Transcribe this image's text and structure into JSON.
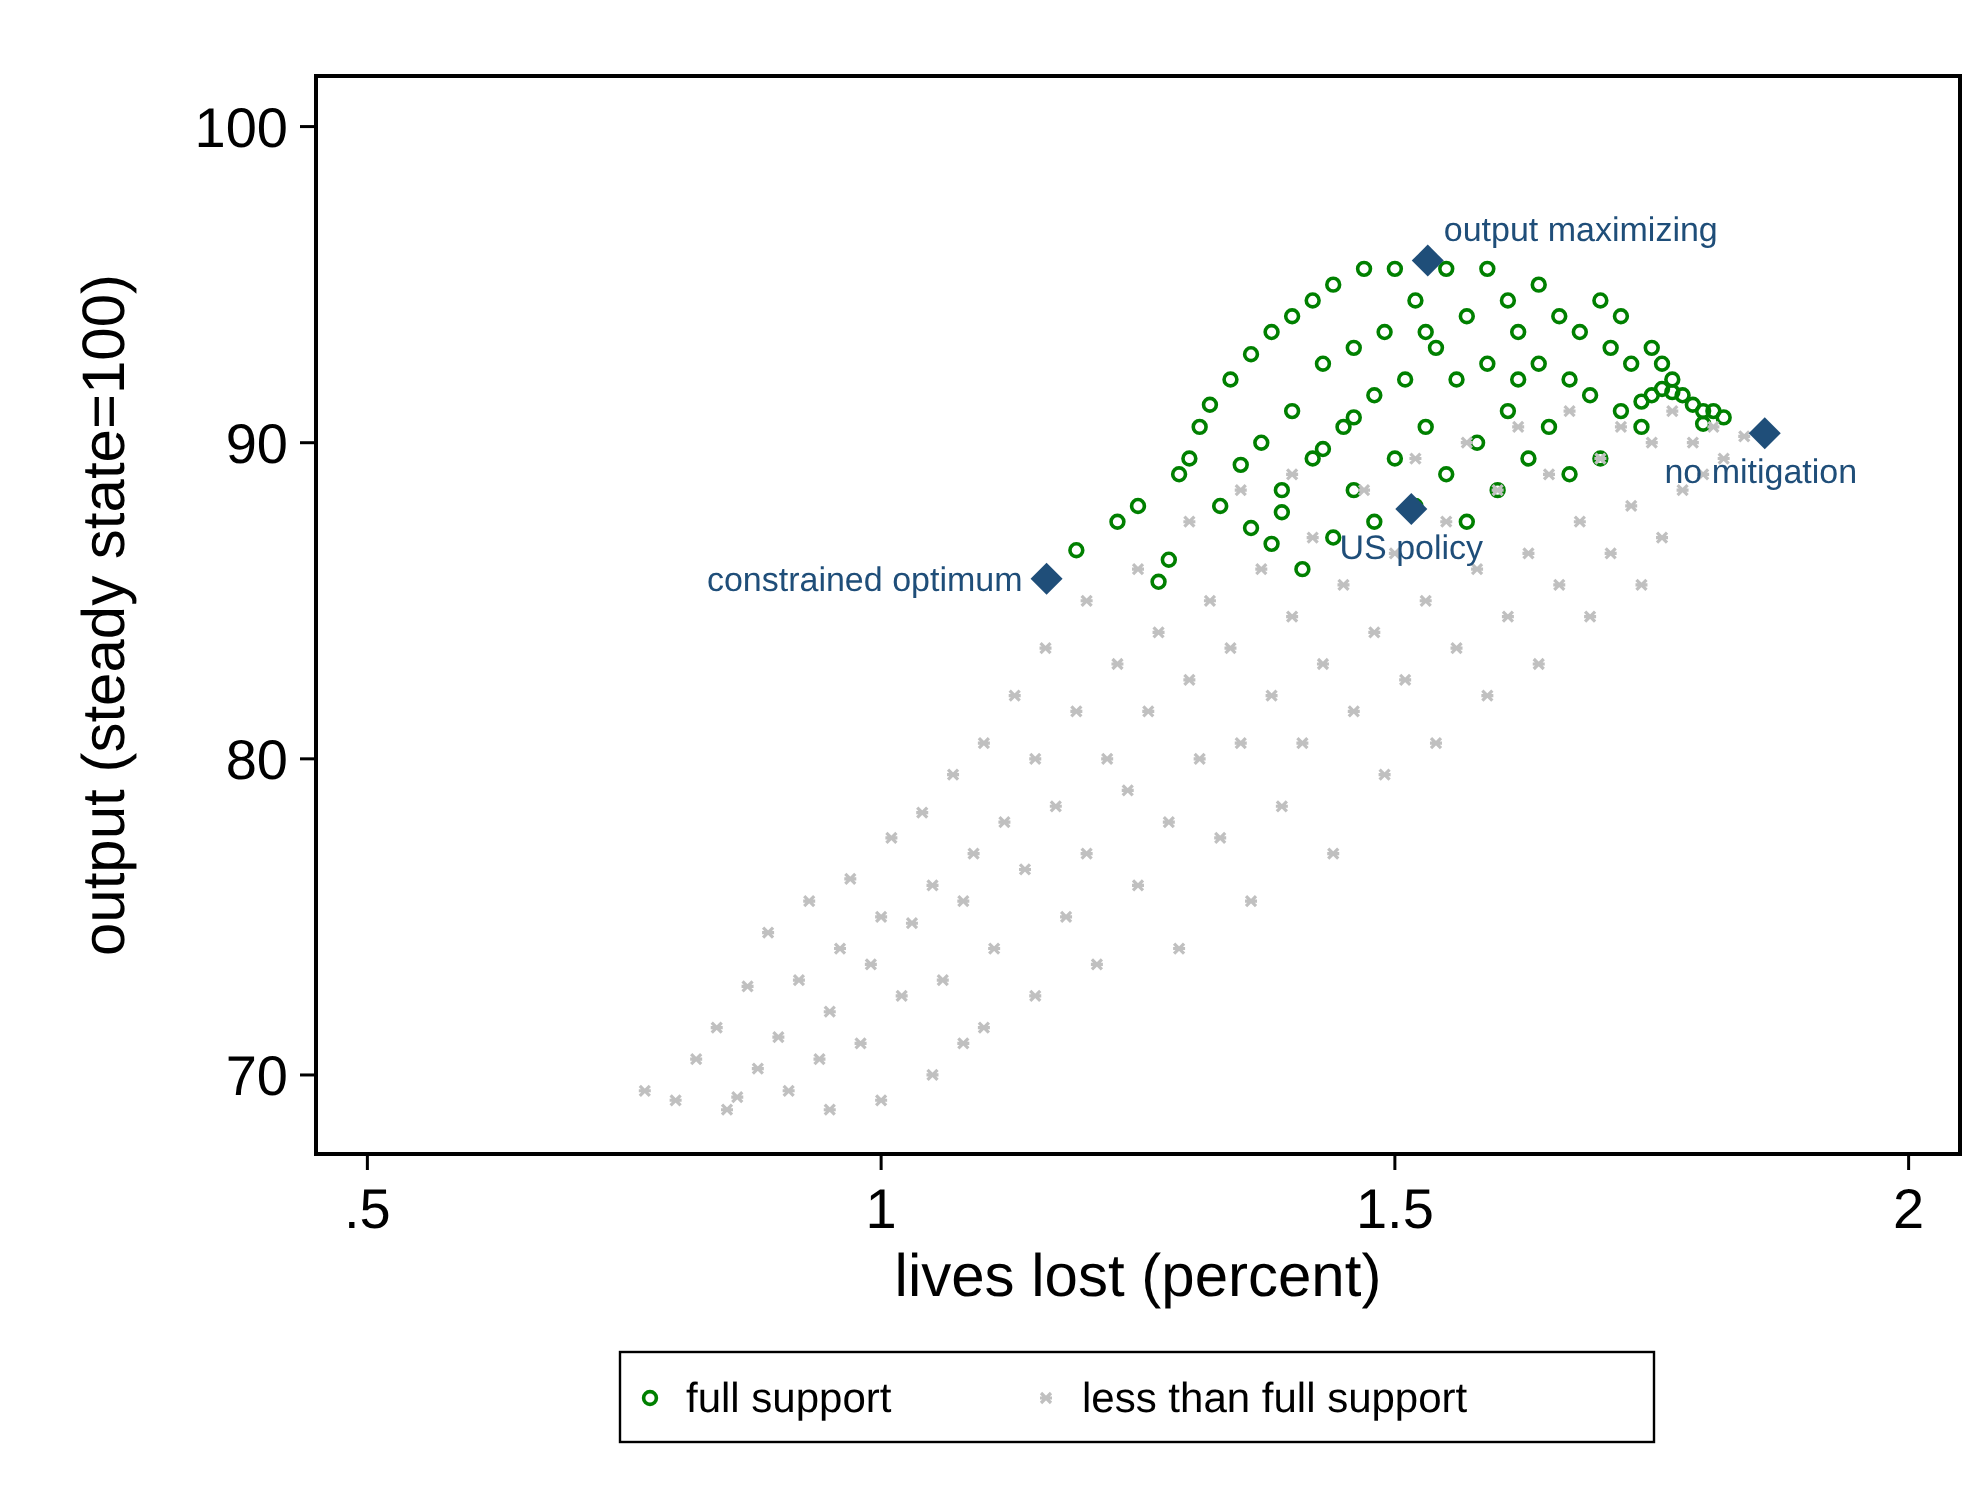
{
  "chart_data": {
    "type": "scatter",
    "xlabel": "lives lost (percent)",
    "ylabel": "output (steady state=100)",
    "xlim": [
      0.45,
      2.05
    ],
    "ylim": [
      67.5,
      101.6
    ],
    "xticks": [
      {
        "value": 0.5,
        "label": ".5"
      },
      1,
      1.5,
      2
    ],
    "yticks": [
      70,
      80,
      90,
      100
    ],
    "grid": false,
    "legend": "bottom",
    "series": [
      {
        "name": "full support",
        "color": "#008000",
        "marker": "circle",
        "x": [
          1.19,
          1.23,
          1.25,
          1.27,
          1.28,
          1.29,
          1.3,
          1.31,
          1.32,
          1.33,
          1.34,
          1.35,
          1.36,
          1.37,
          1.38,
          1.38,
          1.39,
          1.4,
          1.4,
          1.41,
          1.42,
          1.42,
          1.43,
          1.44,
          1.44,
          1.45,
          1.46,
          1.46,
          1.47,
          1.48,
          1.48,
          1.49,
          1.5,
          1.5,
          1.51,
          1.52,
          1.52,
          1.53,
          1.54,
          1.55,
          1.55,
          1.56,
          1.57,
          1.57,
          1.58,
          1.59,
          1.59,
          1.6,
          1.61,
          1.61,
          1.62,
          1.63,
          1.64,
          1.64,
          1.65,
          1.66,
          1.67,
          1.67,
          1.68,
          1.69,
          1.7,
          1.7,
          1.71,
          1.72,
          1.72,
          1.73,
          1.74,
          1.74,
          1.75,
          1.75,
          1.76,
          1.76,
          1.77,
          1.77,
          1.78,
          1.79,
          1.8,
          1.8,
          1.81,
          1.82,
          1.62,
          1.53,
          1.46,
          1.43,
          1.39,
          1.36
        ],
        "values": [
          86.6,
          87.5,
          88.0,
          85.6,
          86.3,
          89.0,
          89.5,
          90.5,
          91.2,
          88.0,
          92.0,
          89.3,
          92.8,
          90.0,
          93.5,
          86.8,
          88.5,
          94.0,
          91.0,
          86.0,
          94.5,
          89.5,
          92.5,
          87.0,
          95.0,
          90.5,
          93.0,
          88.5,
          95.5,
          91.5,
          87.5,
          93.5,
          95.5,
          89.5,
          92.0,
          94.5,
          88.0,
          90.5,
          93.0,
          95.5,
          89.0,
          92.0,
          94.0,
          87.5,
          90.0,
          95.5,
          92.5,
          88.5,
          94.5,
          91.0,
          93.5,
          89.5,
          95.0,
          92.5,
          90.5,
          94.0,
          92.0,
          89.0,
          93.5,
          91.5,
          94.5,
          89.5,
          93.0,
          91.0,
          94.0,
          92.5,
          90.5,
          91.3,
          93.0,
          91.5,
          92.5,
          91.7,
          91.6,
          92.0,
          91.5,
          91.2,
          90.6,
          91.0,
          91.0,
          90.8,
          92.0,
          93.5,
          90.8,
          89.8,
          87.8,
          87.3
        ]
      },
      {
        "name": "less than full support",
        "color": "#c0c0c0",
        "marker": "cross",
        "x": [
          0.77,
          0.8,
          0.82,
          0.84,
          0.86,
          0.87,
          0.88,
          0.89,
          0.9,
          0.91,
          0.92,
          0.93,
          0.94,
          0.95,
          0.96,
          0.97,
          0.98,
          0.99,
          1.0,
          1.0,
          1.01,
          1.02,
          1.03,
          1.04,
          1.05,
          1.05,
          1.06,
          1.07,
          1.08,
          1.09,
          1.1,
          1.1,
          1.11,
          1.12,
          1.13,
          1.14,
          1.15,
          1.15,
          1.16,
          1.17,
          1.18,
          1.19,
          1.2,
          1.2,
          1.21,
          1.22,
          1.23,
          1.24,
          1.25,
          1.25,
          1.26,
          1.27,
          1.28,
          1.29,
          1.3,
          1.3,
          1.31,
          1.32,
          1.33,
          1.34,
          1.35,
          1.35,
          1.36,
          1.37,
          1.38,
          1.39,
          1.4,
          1.4,
          1.41,
          1.42,
          1.43,
          1.44,
          1.45,
          1.46,
          1.47,
          1.48,
          1.49,
          1.5,
          1.51,
          1.52,
          1.53,
          1.54,
          1.55,
          1.56,
          1.57,
          1.58,
          1.59,
          1.6,
          1.61,
          1.62,
          1.63,
          1.64,
          1.65,
          1.66,
          1.67,
          1.68,
          1.69,
          1.7,
          1.71,
          1.72,
          1.73,
          1.74,
          1.75,
          1.76,
          1.77,
          1.78,
          1.79,
          1.8,
          1.81,
          1.82,
          1.84,
          0.85,
          0.95,
          1.08
        ],
        "values": [
          69.5,
          69.2,
          70.5,
          71.5,
          69.3,
          72.8,
          70.2,
          74.5,
          71.2,
          69.5,
          73.0,
          75.5,
          70.5,
          72.0,
          74.0,
          76.2,
          71.0,
          73.5,
          69.2,
          75.0,
          77.5,
          72.5,
          74.8,
          78.3,
          70.0,
          76.0,
          73.0,
          79.5,
          75.5,
          77.0,
          71.5,
          80.5,
          74.0,
          78.0,
          82.0,
          76.5,
          72.5,
          80.0,
          83.5,
          78.5,
          75.0,
          81.5,
          85.0,
          77.0,
          73.5,
          80.0,
          83.0,
          79.0,
          76.0,
          86.0,
          81.5,
          84.0,
          78.0,
          74.0,
          82.5,
          87.5,
          80.0,
          85.0,
          77.5,
          83.5,
          88.5,
          80.5,
          75.5,
          86.0,
          82.0,
          78.5,
          84.5,
          89.0,
          80.5,
          87.0,
          83.0,
          77.0,
          85.5,
          81.5,
          88.5,
          84.0,
          79.5,
          86.5,
          82.5,
          89.5,
          85.0,
          80.5,
          87.5,
          83.5,
          90.0,
          86.0,
          82.0,
          88.5,
          84.5,
          90.5,
          86.5,
          83.0,
          89.0,
          85.5,
          91.0,
          87.5,
          84.5,
          89.5,
          86.5,
          90.5,
          88.0,
          85.5,
          90.0,
          87.0,
          91.0,
          88.5,
          90.0,
          89.0,
          90.5,
          89.5,
          90.2,
          68.9,
          68.9,
          71.0
        ]
      },
      {
        "color": "#1f4e79",
        "marker": "diamond",
        "x": [
          1.161,
          1.532,
          1.516,
          1.86
        ],
        "values": [
          85.7,
          95.76,
          87.9,
          90.3
        ]
      }
    ],
    "annotations": [
      {
        "text": "constrained optimum",
        "x": 1.161,
        "y": 85.7
      },
      {
        "text": "output maximizing",
        "x": 1.532,
        "y": 95.76
      },
      {
        "text": "US policy",
        "x": 1.516,
        "y": 87.9
      },
      {
        "text": "no mitigation",
        "x": 1.86,
        "y": 90.3
      }
    ]
  }
}
